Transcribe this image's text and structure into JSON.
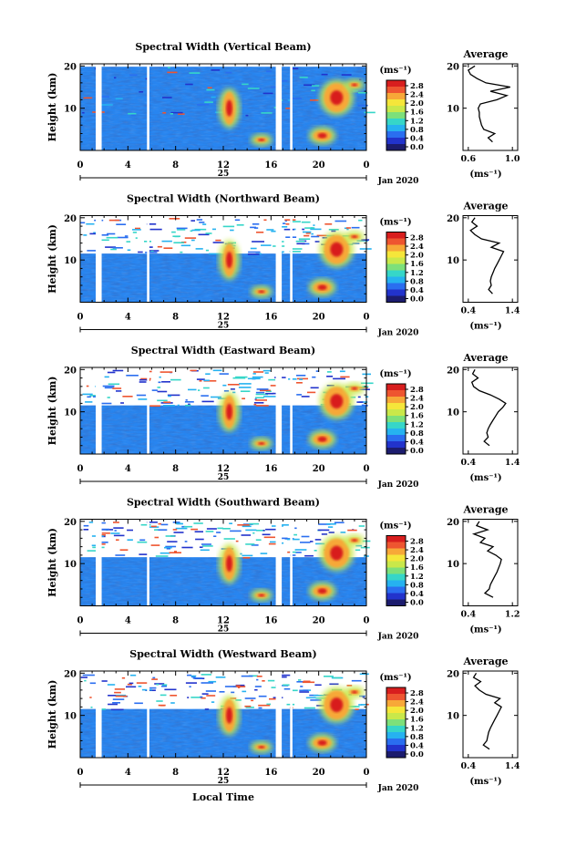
{
  "chart_data": {
    "type": "heatmap",
    "xlabel": "Local Time",
    "date_label": "Jan 2020",
    "day_label": "25",
    "units_label": "(ms⁻¹)",
    "avg_title": "Average",
    "avg_xlabel": "(ms⁻¹)",
    "ylabel": "Height (km)",
    "x_ticks": [
      "0",
      "4",
      "8",
      "12",
      "16",
      "20",
      "0"
    ],
    "y_ticks": [
      "10",
      "20"
    ],
    "colorbar_ticks": [
      "0.0",
      "0.4",
      "0.8",
      "1.2",
      "1.6",
      "2.0",
      "2.4",
      "2.8"
    ],
    "colors": {
      "scale": [
        "#1c1c6e",
        "#2233cc",
        "#2a6ef0",
        "#26b2f0",
        "#36d6c8",
        "#7de07a",
        "#c9e84a",
        "#f5e63a",
        "#f7a838",
        "#ee5530",
        "#d81e1e"
      ],
      "line": "#000000"
    },
    "panels": [
      {
        "title": "Spectral Width (Vertical Beam)",
        "avg_xticks": [
          "0.6",
          "1.0"
        ],
        "avg_profile": [
          {
            "h": 2,
            "v": 0.82
          },
          {
            "h": 3,
            "v": 0.78
          },
          {
            "h": 4,
            "v": 0.84
          },
          {
            "h": 5,
            "v": 0.74
          },
          {
            "h": 6,
            "v": 0.72
          },
          {
            "h": 7,
            "v": 0.71
          },
          {
            "h": 8,
            "v": 0.7
          },
          {
            "h": 9,
            "v": 0.7
          },
          {
            "h": 10,
            "v": 0.69
          },
          {
            "h": 11,
            "v": 0.71
          },
          {
            "h": 12,
            "v": 0.86
          },
          {
            "h": 13,
            "v": 0.95
          },
          {
            "h": 14,
            "v": 0.8
          },
          {
            "h": 15,
            "v": 0.98
          },
          {
            "h": 16,
            "v": 0.76
          },
          {
            "h": 17,
            "v": 0.68
          },
          {
            "h": 18,
            "v": 0.62
          },
          {
            "h": 19,
            "v": 0.6
          },
          {
            "h": 20,
            "v": 0.66
          }
        ]
      },
      {
        "title": "Spectral Width (Northward Beam)",
        "avg_xticks": [
          "0.4",
          "1.4"
        ],
        "avg_profile": [
          {
            "h": 2,
            "v": 0.95
          },
          {
            "h": 3,
            "v": 0.86
          },
          {
            "h": 4,
            "v": 0.92
          },
          {
            "h": 5,
            "v": 0.9
          },
          {
            "h": 6,
            "v": 0.92
          },
          {
            "h": 7,
            "v": 0.96
          },
          {
            "h": 8,
            "v": 1.0
          },
          {
            "h": 9,
            "v": 1.05
          },
          {
            "h": 10,
            "v": 1.1
          },
          {
            "h": 11,
            "v": 1.15
          },
          {
            "h": 12,
            "v": 1.2
          },
          {
            "h": 13,
            "v": 0.92
          },
          {
            "h": 14,
            "v": 1.1
          },
          {
            "h": 15,
            "v": 0.7
          },
          {
            "h": 16,
            "v": 0.55
          },
          {
            "h": 17,
            "v": 0.45
          },
          {
            "h": 18,
            "v": 0.6
          },
          {
            "h": 19,
            "v": 0.48
          },
          {
            "h": 20,
            "v": 0.55
          }
        ]
      },
      {
        "title": "Spectral Width (Eastward Beam)",
        "avg_xticks": [
          "0.4",
          "1.4"
        ],
        "avg_profile": [
          {
            "h": 2,
            "v": 0.88
          },
          {
            "h": 3,
            "v": 0.76
          },
          {
            "h": 4,
            "v": 0.85
          },
          {
            "h": 5,
            "v": 0.82
          },
          {
            "h": 6,
            "v": 0.85
          },
          {
            "h": 7,
            "v": 0.9
          },
          {
            "h": 8,
            "v": 0.96
          },
          {
            "h": 9,
            "v": 1.02
          },
          {
            "h": 10,
            "v": 1.08
          },
          {
            "h": 11,
            "v": 1.18
          },
          {
            "h": 12,
            "v": 1.25
          },
          {
            "h": 13,
            "v": 1.1
          },
          {
            "h": 14,
            "v": 0.9
          },
          {
            "h": 15,
            "v": 0.65
          },
          {
            "h": 16,
            "v": 0.52
          },
          {
            "h": 17,
            "v": 0.48
          },
          {
            "h": 18,
            "v": 0.62
          },
          {
            "h": 19,
            "v": 0.5
          },
          {
            "h": 20,
            "v": 0.55
          }
        ]
      },
      {
        "title": "Spectral Width (Southward Beam)",
        "avg_xticks": [
          "0.4",
          "1.2"
        ],
        "avg_profile": [
          {
            "h": 2,
            "v": 0.85
          },
          {
            "h": 3,
            "v": 0.7
          },
          {
            "h": 4,
            "v": 0.78
          },
          {
            "h": 5,
            "v": 0.8
          },
          {
            "h": 6,
            "v": 0.84
          },
          {
            "h": 7,
            "v": 0.88
          },
          {
            "h": 8,
            "v": 0.92
          },
          {
            "h": 9,
            "v": 0.95
          },
          {
            "h": 10,
            "v": 0.98
          },
          {
            "h": 11,
            "v": 1.0
          },
          {
            "h": 12,
            "v": 0.9
          },
          {
            "h": 13,
            "v": 0.75
          },
          {
            "h": 14,
            "v": 0.85
          },
          {
            "h": 15,
            "v": 0.62
          },
          {
            "h": 16,
            "v": 0.7
          },
          {
            "h": 17,
            "v": 0.5
          },
          {
            "h": 18,
            "v": 0.75
          },
          {
            "h": 19,
            "v": 0.55
          },
          {
            "h": 20,
            "v": 0.6
          }
        ]
      },
      {
        "title": "Spectral Width (Westward Beam)",
        "avg_xticks": [
          "0.4",
          "1.4"
        ],
        "avg_profile": [
          {
            "h": 2,
            "v": 0.88
          },
          {
            "h": 3,
            "v": 0.74
          },
          {
            "h": 4,
            "v": 0.82
          },
          {
            "h": 5,
            "v": 0.84
          },
          {
            "h": 6,
            "v": 0.86
          },
          {
            "h": 7,
            "v": 0.9
          },
          {
            "h": 8,
            "v": 0.95
          },
          {
            "h": 9,
            "v": 1.0
          },
          {
            "h": 10,
            "v": 1.05
          },
          {
            "h": 11,
            "v": 1.1
          },
          {
            "h": 12,
            "v": 1.15
          },
          {
            "h": 13,
            "v": 1.0
          },
          {
            "h": 14,
            "v": 1.12
          },
          {
            "h": 15,
            "v": 0.8
          },
          {
            "h": 16,
            "v": 0.65
          },
          {
            "h": 17,
            "v": 0.55
          },
          {
            "h": 18,
            "v": 0.68
          },
          {
            "h": 19,
            "v": 0.52
          },
          {
            "h": 20,
            "v": 0.58
          }
        ]
      }
    ]
  }
}
